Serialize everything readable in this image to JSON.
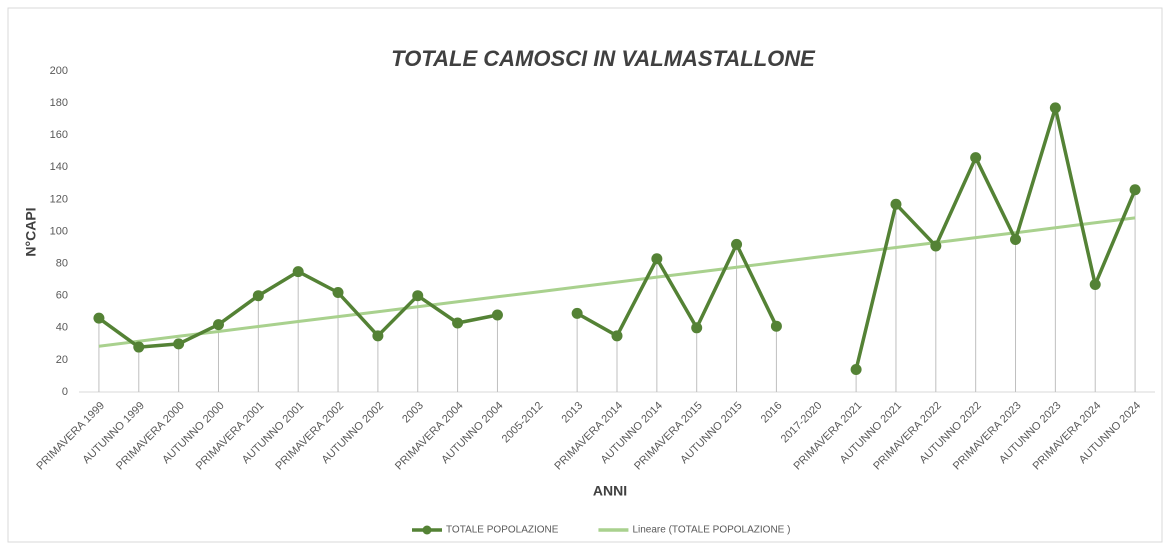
{
  "chart_data": {
    "type": "line",
    "title": "TOTALE CAMOSCI IN VALMASTALLONE",
    "x_label": "ANNI",
    "y_label": "N°CAPI",
    "categories": [
      "PRIMAVERA 1999",
      "AUTUNNO 1999",
      "PRIMAVERA 2000",
      "AUTUNNO 2000",
      "PRIMAVERA 2001",
      "AUTUNNO 2001",
      "PRIMAVERA 2002",
      "AUTUNNO 2002",
      "2003",
      "PRIMAVERA 2004",
      "AUTUNNO 2004",
      "2005-2012",
      "2013",
      "PRIMAVERA 2014",
      "AUTUNNO 2014",
      "PRIMAVERA 2015",
      "AUTUNNO 2015",
      "2016",
      "2017-2020",
      "PRIMAVERA 2021",
      "AUTUNNO 2021",
      "PRIMAVERA 2022",
      "AUTUNNO 2022",
      "PRIMAVERA 2023",
      "AUTUNNO 2023",
      "PRIMAVERA 2024",
      "AUTUNNO 2024"
    ],
    "series": [
      {
        "name": "TOTALE POPOLAZIONE",
        "color": "#548235",
        "markers": true,
        "drop_lines": true,
        "values": [
          46,
          28,
          30,
          42,
          60,
          75,
          62,
          35,
          60,
          43,
          48,
          null,
          49,
          35,
          83,
          40,
          92,
          41,
          null,
          14,
          117,
          91,
          146,
          95,
          177,
          67,
          126
        ]
      },
      {
        "name": "Lineare (TOTALE POPOLAZIONE )",
        "color": "#a9d18e",
        "markers": false,
        "drop_lines": false,
        "values": [
          28.5,
          31.6,
          34.7,
          37.7,
          40.8,
          43.9,
          47.0,
          50.0,
          53.1,
          56.2,
          59.3,
          62.3,
          65.4,
          68.5,
          71.6,
          74.6,
          77.7,
          80.8,
          83.9,
          86.9,
          90.0,
          93.1,
          96.2,
          99.2,
          102.3,
          105.4,
          108.5
        ]
      }
    ],
    "ylim": [
      0,
      200
    ],
    "yticks": [
      0,
      20,
      40,
      60,
      80,
      100,
      120,
      140,
      160,
      180,
      200
    ],
    "grid": false,
    "legend": "bottom"
  }
}
